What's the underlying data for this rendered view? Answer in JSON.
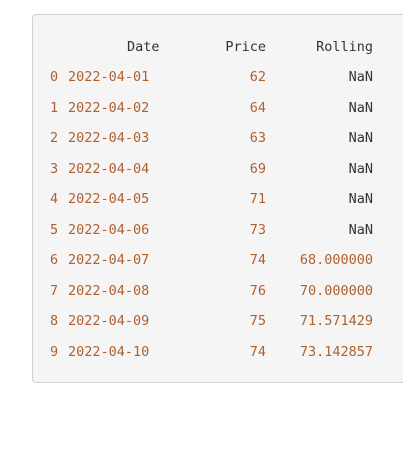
{
  "output_table": {
    "columns": [
      "Date",
      "Price",
      "Rolling"
    ],
    "rows": [
      {
        "index": "0",
        "date": "2022-04-01",
        "price": "62",
        "rolling": "NaN"
      },
      {
        "index": "1",
        "date": "2022-04-02",
        "price": "64",
        "rolling": "NaN"
      },
      {
        "index": "2",
        "date": "2022-04-03",
        "price": "63",
        "rolling": "NaN"
      },
      {
        "index": "3",
        "date": "2022-04-04",
        "price": "69",
        "rolling": "NaN"
      },
      {
        "index": "4",
        "date": "2022-04-05",
        "price": "71",
        "rolling": "NaN"
      },
      {
        "index": "5",
        "date": "2022-04-06",
        "price": "73",
        "rolling": "NaN"
      },
      {
        "index": "6",
        "date": "2022-04-07",
        "price": "74",
        "rolling": "68.000000"
      },
      {
        "index": "7",
        "date": "2022-04-08",
        "price": "76",
        "rolling": "70.000000"
      },
      {
        "index": "8",
        "date": "2022-04-09",
        "price": "75",
        "rolling": "71.571429"
      },
      {
        "index": "9",
        "date": "2022-04-10",
        "price": "74",
        "rolling": "73.142857"
      }
    ]
  },
  "colors": {
    "panel_background": "#f5f5f5",
    "panel_border": "#cfcfcf",
    "header_text": "#333333",
    "value_text": "#b0602e",
    "nan_text": "#333333"
  }
}
